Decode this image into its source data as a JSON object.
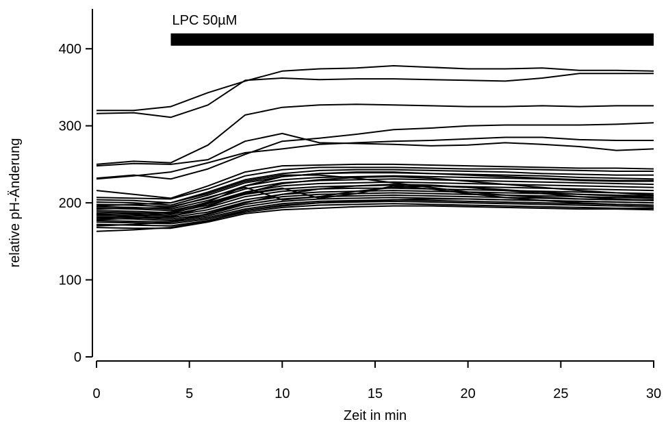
{
  "chart_data": {
    "type": "line",
    "title": "",
    "xlabel": "Zeit in min",
    "ylabel": "relative pH-Änderung",
    "xlim": [
      0,
      30
    ],
    "ylim": [
      0,
      450
    ],
    "xticks": [
      0,
      5,
      10,
      15,
      20,
      25,
      30
    ],
    "yticks": [
      0,
      100,
      200,
      300,
      400
    ],
    "grid": false,
    "legend": "none",
    "line_color": "#000000",
    "annotation": {
      "label": "LPC 50µM",
      "x_start": 4,
      "x_end": 30,
      "y": 412
    },
    "x": [
      0,
      2,
      4,
      6,
      8,
      10,
      12,
      14,
      16,
      18,
      20,
      22,
      24,
      26,
      28,
      30
    ],
    "series": [
      {
        "values": [
          320,
          320,
          325,
          343,
          358,
          371,
          374,
          375,
          378,
          376,
          374,
          374,
          375,
          372,
          372,
          371
        ]
      },
      {
        "values": [
          316,
          317,
          311,
          327,
          359,
          362,
          360,
          361,
          361,
          360,
          359,
          358,
          362,
          368,
          368,
          368
        ]
      },
      {
        "values": [
          250,
          254,
          252,
          275,
          314,
          324,
          327,
          328,
          327,
          326,
          325,
          325,
          326,
          325,
          326,
          326
        ]
      },
      {
        "values": [
          231,
          235,
          240,
          252,
          265,
          270,
          276,
          278,
          280,
          281,
          283,
          285,
          285,
          282,
          281,
          281
        ]
      },
      {
        "values": [
          248,
          251,
          250,
          256,
          280,
          290,
          278,
          277,
          276,
          274,
          275,
          278,
          276,
          273,
          268,
          270
        ]
      },
      {
        "values": [
          232,
          236,
          231,
          244,
          263,
          280,
          284,
          289,
          295,
          297,
          300,
          301,
          301,
          301,
          302,
          304
        ]
      },
      {
        "values": [
          216,
          211,
          206,
          222,
          240,
          248,
          249,
          250,
          250,
          249,
          248,
          247,
          246,
          245,
          245,
          244
        ]
      },
      {
        "values": [
          207,
          206,
          205,
          218,
          235,
          243,
          246,
          246,
          246,
          245,
          244,
          244,
          243,
          242,
          241,
          241
        ]
      },
      {
        "values": [
          204,
          203,
          200,
          214,
          230,
          238,
          242,
          243,
          243,
          242,
          241,
          240,
          238,
          237,
          236,
          236
        ]
      },
      {
        "values": [
          201,
          200,
          197,
          210,
          226,
          234,
          238,
          239,
          239,
          238,
          237,
          236,
          235,
          233,
          232,
          231
        ]
      },
      {
        "values": [
          198,
          197,
          195,
          206,
          222,
          230,
          233,
          234,
          235,
          234,
          233,
          232,
          231,
          229,
          228,
          228
        ]
      },
      {
        "values": [
          195,
          194,
          192,
          203,
          218,
          226,
          229,
          230,
          231,
          230,
          229,
          228,
          227,
          226,
          225,
          224
        ]
      },
      {
        "values": [
          193,
          192,
          190,
          200,
          214,
          222,
          225,
          226,
          227,
          226,
          225,
          224,
          223,
          222,
          221,
          220
        ]
      },
      {
        "values": [
          190,
          189,
          187,
          197,
          211,
          218,
          221,
          222,
          223,
          222,
          221,
          220,
          219,
          218,
          217,
          216
        ]
      },
      {
        "values": [
          188,
          187,
          185,
          194,
          208,
          215,
          218,
          219,
          219,
          218,
          217,
          216,
          215,
          214,
          213,
          212
        ]
      },
      {
        "values": [
          186,
          185,
          183,
          191,
          204,
          211,
          214,
          215,
          216,
          215,
          214,
          213,
          212,
          211,
          210,
          209
        ]
      },
      {
        "values": [
          184,
          183,
          181,
          188,
          201,
          208,
          211,
          212,
          213,
          212,
          211,
          210,
          209,
          208,
          207,
          206
        ]
      },
      {
        "values": [
          182,
          181,
          179,
          185,
          198,
          205,
          208,
          209,
          210,
          209,
          208,
          207,
          206,
          205,
          204,
          203
        ]
      },
      {
        "values": [
          180,
          179,
          177,
          183,
          195,
          202,
          205,
          206,
          207,
          206,
          205,
          204,
          203,
          202,
          201,
          200
        ]
      },
      {
        "values": [
          177,
          176,
          175,
          181,
          192,
          199,
          202,
          203,
          204,
          203,
          202,
          201,
          200,
          199,
          198,
          197
        ]
      },
      {
        "values": [
          175,
          174,
          173,
          179,
          190,
          197,
          200,
          201,
          202,
          201,
          200,
          199,
          198,
          197,
          196,
          195
        ]
      },
      {
        "values": [
          172,
          171,
          170,
          177,
          188,
          194,
          197,
          198,
          199,
          198,
          197,
          196,
          195,
          194,
          193,
          193
        ]
      },
      {
        "values": [
          168,
          167,
          167,
          175,
          186,
          191,
          193,
          195,
          196,
          196,
          195,
          194,
          193,
          192,
          192,
          191
        ]
      },
      {
        "values": [
          163,
          165,
          168,
          176,
          190,
          196,
          200,
          202,
          204,
          205,
          205,
          204,
          203,
          202,
          201,
          200
        ]
      },
      {
        "values": [
          170,
          172,
          175,
          186,
          200,
          211,
          218,
          222,
          224,
          223,
          220,
          217,
          214,
          211,
          209,
          207
        ]
      },
      {
        "values": [
          178,
          180,
          182,
          195,
          213,
          225,
          230,
          233,
          234,
          232,
          228,
          224,
          220,
          216,
          213,
          210
        ]
      },
      {
        "values": [
          185,
          186,
          188,
          201,
          222,
          234,
          238,
          240,
          240,
          238,
          236,
          234,
          232,
          230,
          229,
          229
        ]
      },
      {
        "values": [
          196,
          198,
          200,
          212,
          228,
          236,
          236,
          232,
          226,
          220,
          214,
          210,
          207,
          205,
          204,
          204
        ]
      },
      {
        "values": [
          192,
          193,
          194,
          207,
          220,
          204,
          208,
          215,
          220,
          222,
          220,
          216,
          212,
          208,
          205,
          203
        ]
      },
      {
        "values": [
          180,
          183,
          186,
          199,
          212,
          219,
          206,
          212,
          222,
          218,
          212,
          207,
          203,
          200,
          198,
          197
        ]
      }
    ]
  }
}
